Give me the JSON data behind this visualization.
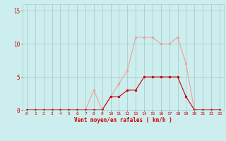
{
  "hours": [
    0,
    1,
    2,
    3,
    4,
    5,
    6,
    7,
    8,
    9,
    10,
    11,
    12,
    13,
    14,
    15,
    16,
    17,
    18,
    19,
    20,
    21,
    22,
    23
  ],
  "vent_moyen": [
    0,
    0,
    0,
    0,
    0,
    0,
    0,
    0,
    0,
    0,
    2,
    2,
    3,
    3,
    5,
    5,
    5,
    5,
    5,
    2,
    0,
    0,
    0,
    0
  ],
  "rafales": [
    0,
    0,
    0,
    0,
    0,
    0,
    0,
    0,
    3,
    0,
    2,
    4,
    6,
    11,
    11,
    11,
    10,
    10,
    11,
    7,
    0,
    0,
    0,
    0
  ],
  "color_moyen": "#cc0000",
  "color_rafales": "#f0a0a0",
  "bg_color": "#cceeee",
  "grid_color": "#aacccc",
  "axis_color": "#cc0000",
  "ylabel_ticks": [
    0,
    5,
    10,
    15
  ],
  "xlabel": "Vent moyen/en rafales ( km/h )",
  "ylim": [
    0,
    16
  ],
  "xlim": [
    -0.5,
    23.5
  ]
}
